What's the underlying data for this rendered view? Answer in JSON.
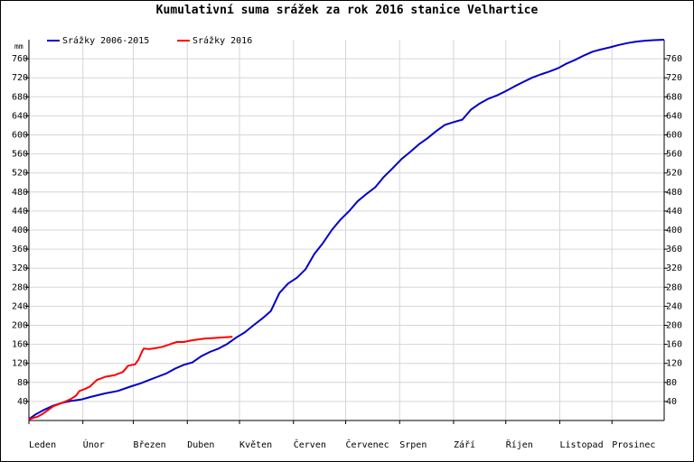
{
  "chart_data": {
    "type": "line",
    "title": "Kumulativní suma srážek za rok 2016 stanice Velhartice",
    "unit": "mm",
    "ylim": [
      0,
      800
    ],
    "yticks": [
      40,
      80,
      120,
      160,
      200,
      240,
      280,
      320,
      360,
      400,
      440,
      480,
      520,
      560,
      600,
      640,
      680,
      720,
      760
    ],
    "months": [
      "Leden",
      "Únor",
      "Březen",
      "Duben",
      "Květen",
      "Červen",
      "Červenec",
      "Srpen",
      "Září",
      "Říjen",
      "Listopad",
      "Prosinec"
    ],
    "grid": true,
    "legend_position": "top-left",
    "series": [
      {
        "name": "Srážky 2006-2015",
        "color": "#0000cc",
        "x": [
          1,
          5,
          10,
          15,
          20,
          25,
          31,
          37,
          45,
          52,
          60,
          65,
          70,
          75,
          80,
          85,
          90,
          95,
          100,
          105,
          110,
          115,
          120,
          125,
          130,
          135,
          140,
          145,
          150,
          155,
          160,
          165,
          170,
          175,
          180,
          185,
          190,
          195,
          200,
          205,
          210,
          215,
          220,
          225,
          230,
          235,
          240,
          245,
          250,
          255,
          260,
          265,
          270,
          275,
          280,
          285,
          290,
          295,
          300,
          305,
          310,
          315,
          320,
          325,
          330,
          335,
          340,
          345,
          350,
          355,
          360,
          366
        ],
        "y": [
          3,
          13,
          23,
          31,
          37,
          41,
          44,
          50,
          57,
          62,
          72,
          78,
          85,
          92,
          99,
          109,
          117,
          122,
          135,
          144,
          151,
          161,
          174,
          185,
          200,
          214,
          230,
          268,
          288,
          300,
          318,
          350,
          373,
          400,
          422,
          440,
          461,
          476,
          490,
          512,
          530,
          549,
          564,
          580,
          593,
          608,
          621,
          627,
          632,
          653,
          666,
          676,
          683,
          692,
          702,
          711,
          720,
          727,
          733,
          740,
          750,
          758,
          767,
          775,
          780,
          784,
          789,
          793,
          796,
          798,
          799,
          800
        ]
      },
      {
        "name": "Srážky 2016",
        "color": "#ff0000",
        "x": [
          1,
          3,
          6,
          9,
          12,
          15,
          18,
          20,
          22,
          25,
          28,
          30,
          33,
          36,
          40,
          45,
          50,
          55,
          58,
          62,
          64,
          66,
          67,
          70,
          74,
          78,
          82,
          86,
          90,
          94,
          98,
          102,
          106,
          110,
          114,
          118
        ],
        "y": [
          2,
          5,
          8,
          14,
          22,
          30,
          34,
          37,
          40,
          45,
          52,
          62,
          66,
          71,
          85,
          92,
          95,
          102,
          115,
          118,
          128,
          145,
          151,
          150,
          152,
          155,
          160,
          165,
          165,
          168,
          170,
          172,
          173,
          174,
          175,
          176
        ]
      }
    ]
  }
}
